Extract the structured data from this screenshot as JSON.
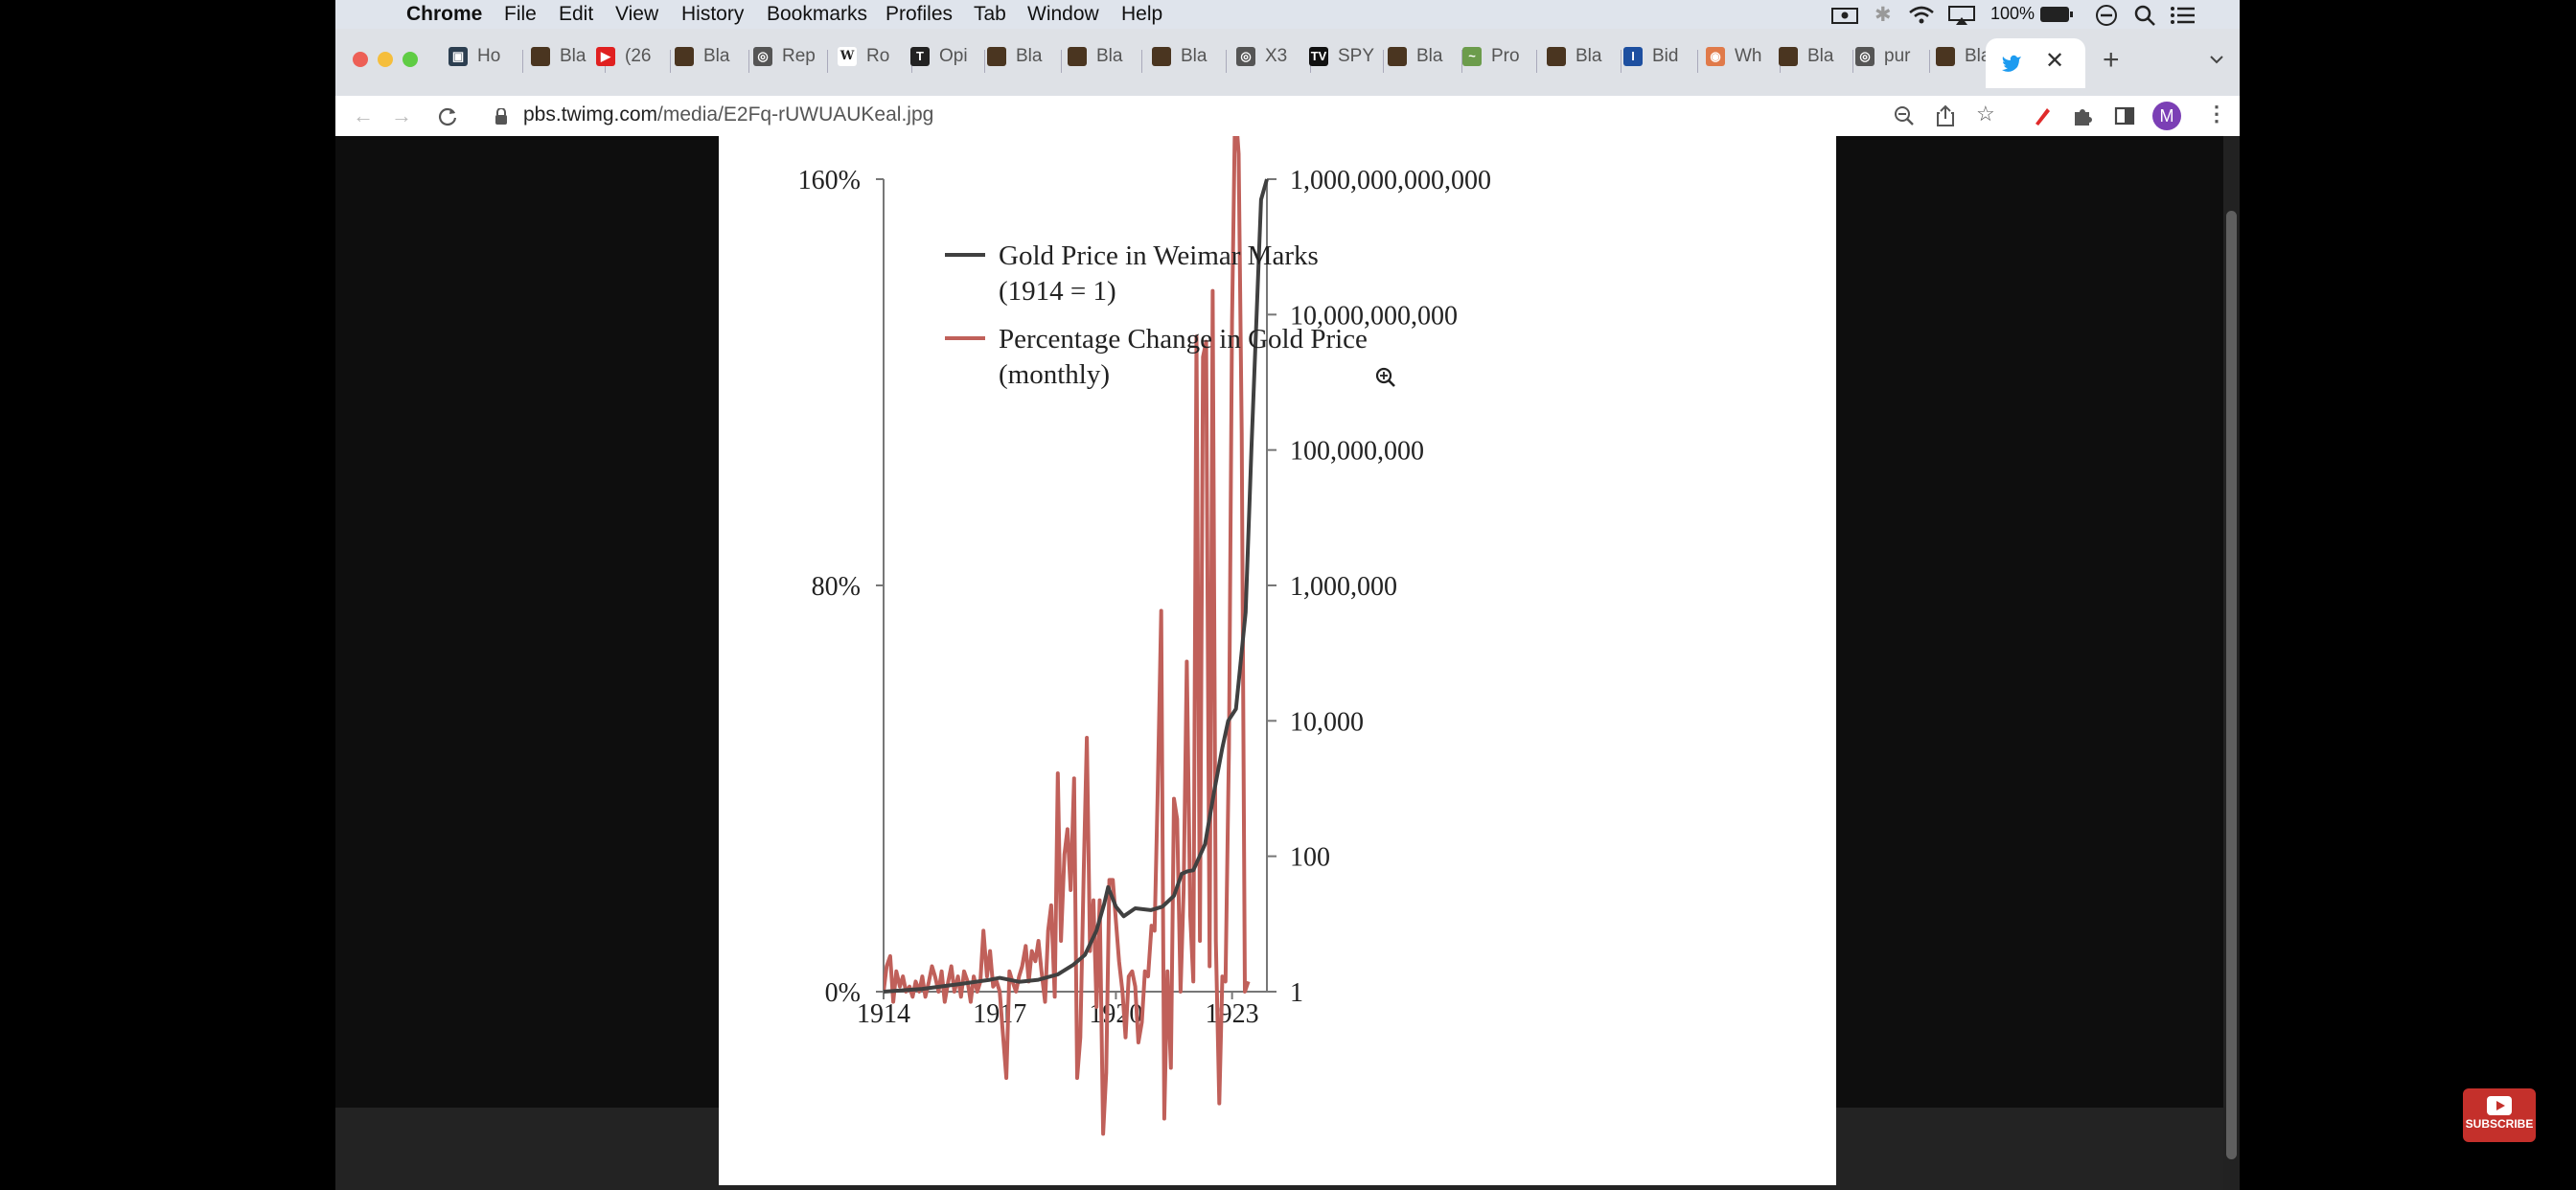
{
  "menubar": {
    "app": "Chrome",
    "items": [
      "File",
      "Edit",
      "View",
      "History",
      "Bookmarks",
      "Profiles",
      "Tab",
      "Window",
      "Help"
    ],
    "battery": "100%"
  },
  "tabs": [
    {
      "label": "Ho",
      "fav": "#2c3e50",
      "glyph": "▣"
    },
    {
      "label": "Bla",
      "fav": "#4a3520",
      "glyph": ""
    },
    {
      "label": "(26",
      "fav": "#e02020",
      "glyph": "▶"
    },
    {
      "label": "Bla",
      "fav": "#4a3520",
      "glyph": ""
    },
    {
      "label": "Rep",
      "fav": "#555555",
      "glyph": "◎"
    },
    {
      "label": "Ro",
      "fav": "#ffffff",
      "glyph": "W"
    },
    {
      "label": "Opi",
      "fav": "#222222",
      "glyph": "T"
    },
    {
      "label": "Bla",
      "fav": "#4a3520",
      "glyph": ""
    },
    {
      "label": "Bla",
      "fav": "#4a3520",
      "glyph": ""
    },
    {
      "label": "Bla",
      "fav": "#4a3520",
      "glyph": ""
    },
    {
      "label": "X3",
      "fav": "#555555",
      "glyph": "◎"
    },
    {
      "label": "SPY",
      "fav": "#111111",
      "glyph": "TV"
    },
    {
      "label": "Bla",
      "fav": "#4a3520",
      "glyph": ""
    },
    {
      "label": "Pro",
      "fav": "#6c9c4c",
      "glyph": "~"
    },
    {
      "label": "Bla",
      "fav": "#4a3520",
      "glyph": ""
    },
    {
      "label": "Bid",
      "fav": "#1d4fa0",
      "glyph": "I"
    },
    {
      "label": "Wh",
      "fav": "#e07a4a",
      "glyph": "◉"
    },
    {
      "label": "Bla",
      "fav": "#4a3520",
      "glyph": ""
    },
    {
      "label": "pur",
      "fav": "#555555",
      "glyph": "◎"
    },
    {
      "label": "Bla",
      "fav": "#4a3520",
      "glyph": ""
    }
  ],
  "new_tab_label": "+",
  "address": {
    "host": "pbs.twimg.com",
    "path": "/media/E2Fq-rUWUAUKeal.jpg"
  },
  "profile_initial": "M",
  "subscribe_label": "SUBSCRIBE",
  "colors": {
    "gold": "#404040",
    "pct": "#c0605a",
    "accent": "#7b3fb5"
  },
  "chart_data": {
    "type": "line",
    "left_axis": {
      "ticks": [
        "160%",
        "80%",
        "0%"
      ],
      "values": [
        160,
        80,
        0
      ],
      "ylim": [
        0,
        160
      ]
    },
    "right_axis": {
      "scale": "log",
      "ticks": [
        "1,000,000,000,000",
        "10,000,000,000",
        "100,000,000",
        "1,000,000",
        "10,000",
        "100",
        "1"
      ],
      "ylim": [
        1,
        1000000000000
      ]
    },
    "x_ticks": [
      "1914",
      "1917",
      "1920",
      "1923"
    ],
    "x_tick_values": [
      1914,
      1917,
      1920,
      1923
    ],
    "xlim": [
      1914,
      1923.9
    ],
    "series": [
      {
        "name": "Gold Price in Weimar Marks (1914 = 1)",
        "legend": [
          "Gold Price in Weimar Marks",
          "(1914 = 1)"
        ],
        "axis": "right",
        "x": [
          1914.0,
          1915.0,
          1916.0,
          1916.75,
          1917.0,
          1917.5,
          1918.0,
          1918.5,
          1918.9,
          1919.2,
          1919.5,
          1919.7,
          1919.8,
          1920.0,
          1920.2,
          1920.5,
          1920.9,
          1921.2,
          1921.5,
          1921.7,
          1921.85,
          1922.0,
          1922.3,
          1922.55,
          1922.75,
          1922.9,
          1923.1,
          1923.35,
          1923.5,
          1923.75,
          1923.9
        ],
        "y": [
          1,
          1.1,
          1.3,
          1.5,
          1.6,
          1.4,
          1.5,
          1.8,
          2.5,
          3.5,
          8,
          20,
          35,
          18,
          13,
          17,
          16,
          18,
          26,
          55,
          60,
          62,
          150,
          1000,
          4000,
          10000,
          15000,
          400000,
          100000000,
          500000000000,
          1000000000000
        ]
      },
      {
        "name": "Percentage Change in Gold Price (monthly)",
        "legend": [
          "Percentage Change in Gold Price",
          "(monthly)"
        ],
        "axis": "left",
        "x": [
          1914.0,
          1914.08,
          1914.17,
          1914.25,
          1914.33,
          1914.42,
          1914.5,
          1914.58,
          1914.67,
          1914.75,
          1914.83,
          1914.92,
          1915.0,
          1915.08,
          1915.17,
          1915.25,
          1915.33,
          1915.42,
          1915.5,
          1915.58,
          1915.67,
          1915.75,
          1915.83,
          1915.92,
          1916.0,
          1916.08,
          1916.17,
          1916.25,
          1916.33,
          1916.42,
          1916.5,
          1916.58,
          1916.67,
          1916.75,
          1916.83,
          1916.92,
          1917.0,
          1917.08,
          1917.17,
          1917.25,
          1917.33,
          1917.42,
          1917.5,
          1917.58,
          1917.67,
          1917.75,
          1917.83,
          1917.92,
          1918.0,
          1918.08,
          1918.17,
          1918.25,
          1918.33,
          1918.42,
          1918.5,
          1918.58,
          1918.67,
          1918.75,
          1918.83,
          1918.92,
          1919.0,
          1919.08,
          1919.17,
          1919.25,
          1919.33,
          1919.42,
          1919.5,
          1919.58,
          1919.67,
          1919.75,
          1919.83,
          1919.92,
          1920.0,
          1920.08,
          1920.17,
          1920.25,
          1920.33,
          1920.42,
          1920.5,
          1920.58,
          1920.67,
          1920.75,
          1920.83,
          1920.92,
          1921.0,
          1921.08,
          1921.17,
          1921.25,
          1921.33,
          1921.42,
          1921.5,
          1921.58,
          1921.67,
          1921.75,
          1921.83,
          1921.92,
          1922.0,
          1922.08,
          1922.17,
          1922.25,
          1922.33,
          1922.42,
          1922.5,
          1922.58,
          1922.67,
          1922.75,
          1922.83,
          1922.92,
          1923.0,
          1923.08,
          1923.17,
          1923.25,
          1923.33,
          1923.42
        ],
        "y": [
          0,
          5,
          7,
          -2,
          4,
          1,
          3,
          0,
          1,
          -1,
          2,
          0,
          3,
          -1,
          2,
          5,
          3,
          0,
          4,
          -2,
          2,
          5,
          0,
          3,
          -1,
          4,
          2,
          -2,
          3,
          0,
          2,
          12,
          3,
          8,
          1,
          2,
          0,
          -8,
          -17,
          4,
          2,
          0,
          3,
          5,
          9,
          2,
          8,
          6,
          10,
          4,
          -2,
          12,
          17,
          -1,
          43,
          10,
          27,
          32,
          20,
          42,
          -17,
          -9,
          24,
          50,
          8,
          18,
          -3,
          18,
          -28,
          -16,
          22,
          22,
          14,
          6,
          0,
          -9,
          3,
          4,
          1,
          -10,
          -6,
          4,
          3,
          13,
          12,
          40,
          75,
          -25,
          4,
          -15,
          38,
          34,
          0,
          20,
          65,
          15,
          2,
          129,
          10,
          125,
          128,
          5,
          138,
          10,
          -22,
          3,
          2,
          48,
          132,
          175,
          165,
          110,
          0,
          2
        ]
      }
    ],
    "legend_position": "top-left"
  }
}
